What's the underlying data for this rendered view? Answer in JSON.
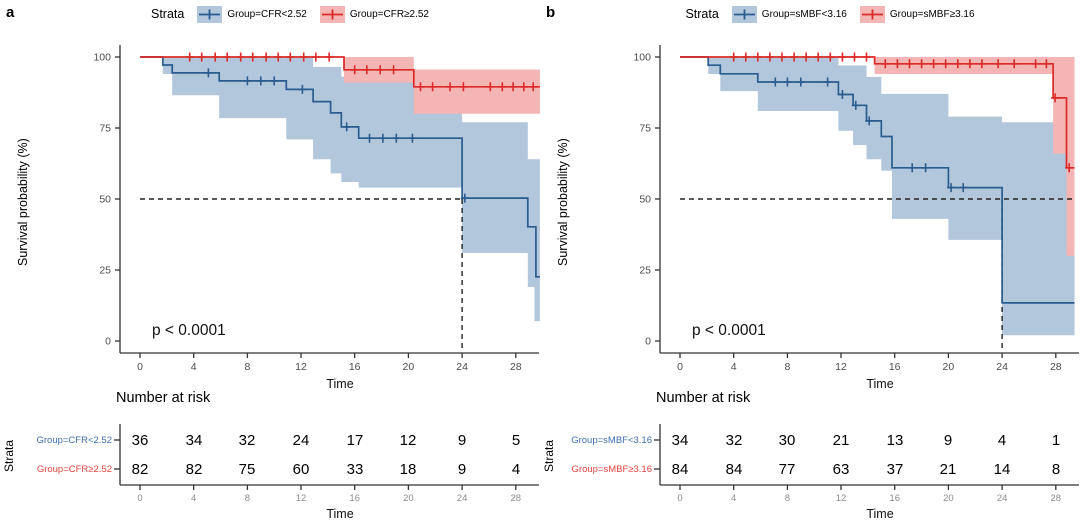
{
  "colors": {
    "blue_line": "#2B5C8F",
    "blue_band": "#B2C6DC",
    "blue_label": "#3E6FB5",
    "red_line": "#DB2A27",
    "red_band": "#F4B5B5",
    "red_label": "#E4463F",
    "axis": "#333333",
    "tick_label": "#4D4D4D",
    "risk_tick_label": "#8C8C8C",
    "guide": "#222222",
    "text": "#111111"
  },
  "chart_data": {
    "type": "line",
    "subtype": "kaplan-meier-step-with-ci",
    "grid": false,
    "panels": [
      {
        "letter": "a",
        "legend_title": "Strata",
        "ylabel": "Survival probability (%)",
        "xlabel": "Time",
        "pvalue": "p < 0.0001",
        "xticks": [
          0,
          4,
          8,
          12,
          16,
          20,
          24,
          28
        ],
        "yticks": [
          0,
          25,
          50,
          75,
          100
        ],
        "xlim": [
          0,
          29.8
        ],
        "ylim": [
          0,
          100
        ],
        "t_end": 29.8,
        "guides": {
          "h_y": 50,
          "h_t_end": 24,
          "v_t": 24
        },
        "series": [
          {
            "name": "Group=CFR<2.52",
            "color": "blue",
            "steps": [
              [
                0,
                100
              ],
              [
                1.7,
                97.2
              ],
              [
                2.4,
                94.4
              ],
              [
                5.9,
                91.6
              ],
              [
                10.9,
                88.6
              ],
              [
                12.9,
                84.3
              ],
              [
                14.2,
                80.3
              ],
              [
                15.0,
                75.4
              ],
              [
                16.3,
                71.4
              ],
              [
                24,
                50.3
              ],
              [
                28.9,
                40.2
              ],
              [
                29.5,
                22.6
              ]
            ],
            "censors": [
              [
                5.1,
                94.4
              ],
              [
                8,
                91.6
              ],
              [
                9,
                91.6
              ],
              [
                10,
                91.6
              ],
              [
                12.1,
                88.6
              ],
              [
                15.4,
                75.4
              ],
              [
                17.1,
                71.4
              ],
              [
                18.1,
                71.4
              ],
              [
                19.1,
                71.4
              ],
              [
                20.3,
                71.4
              ],
              [
                24.2,
                50.3
              ]
            ],
            "band_upper": [
              [
                1.7,
                99.7
              ],
              [
                12.9,
                96.5
              ],
              [
                15.0,
                93
              ],
              [
                16.3,
                91.5
              ],
              [
                24,
                77
              ],
              [
                28.9,
                64
              ]
            ],
            "band_lower": [
              [
                1.7,
                94
              ],
              [
                2.4,
                86.5
              ],
              [
                5.9,
                78.5
              ],
              [
                10.9,
                71
              ],
              [
                12.9,
                64
              ],
              [
                14.2,
                59
              ],
              [
                15.0,
                56
              ],
              [
                16.3,
                54
              ],
              [
                24,
                31
              ],
              [
                28.9,
                19
              ],
              [
                29.4,
                7
              ]
            ]
          },
          {
            "name": "Group=CFR≥2.52",
            "color": "red",
            "steps": [
              [
                0,
                100
              ],
              [
                15.2,
                95.5
              ],
              [
                20.4,
                89.5
              ]
            ],
            "censors": [
              [
                3.7,
                100
              ],
              [
                4.6,
                100
              ],
              [
                5.6,
                100
              ],
              [
                6.5,
                100
              ],
              [
                7.5,
                100
              ],
              [
                8.4,
                100
              ],
              [
                9.4,
                100
              ],
              [
                10.3,
                100
              ],
              [
                11.2,
                100
              ],
              [
                12.2,
                100
              ],
              [
                13.1,
                100
              ],
              [
                14.1,
                100
              ],
              [
                16.0,
                95.5
              ],
              [
                16.9,
                95.5
              ],
              [
                17.9,
                95.5
              ],
              [
                18.9,
                95.5
              ],
              [
                20.9,
                89.5
              ],
              [
                21.8,
                89.5
              ],
              [
                23.1,
                89.5
              ],
              [
                24.1,
                89.5
              ],
              [
                26.1,
                89.5
              ],
              [
                27.0,
                89.5
              ],
              [
                27.8,
                89.5
              ],
              [
                28.6,
                89.5
              ],
              [
                29.3,
                89.5
              ]
            ],
            "band_upper": [
              [
                15.2,
                100
              ],
              [
                20.4,
                95.6
              ]
            ],
            "band_lower": [
              [
                15.2,
                91
              ],
              [
                20.4,
                80
              ]
            ]
          }
        ],
        "risk_table": {
          "title": "Number at risk",
          "strata_axis_label": "Strata",
          "times": [
            0,
            4,
            8,
            12,
            16,
            20,
            24,
            28
          ],
          "rows": [
            {
              "label": "Group=CFR<2.52",
              "color": "blue",
              "counts": [
                36,
                34,
                32,
                24,
                17,
                12,
                9,
                5
              ]
            },
            {
              "label": "Group=CFR≥2.52",
              "color": "red",
              "counts": [
                82,
                82,
                75,
                60,
                33,
                18,
                9,
                4
              ]
            }
          ]
        }
      },
      {
        "letter": "b",
        "legend_title": "Strata",
        "ylabel": "Survival probability (%)",
        "xlabel": "Time",
        "pvalue": "p < 0.0001",
        "xticks": [
          0,
          4,
          8,
          12,
          16,
          20,
          24,
          28
        ],
        "yticks": [
          0,
          25,
          50,
          75,
          100
        ],
        "xlim": [
          0,
          29.4
        ],
        "ylim": [
          0,
          100
        ],
        "t_end": 29.4,
        "guides": {
          "h_y": 50,
          "h_t_end": 29.4,
          "v_t": 24
        },
        "series": [
          {
            "name": "Group=sMBF<3.16",
            "color": "blue",
            "steps": [
              [
                0,
                100
              ],
              [
                2.1,
                97.1
              ],
              [
                3.0,
                94.1
              ],
              [
                5.8,
                91.2
              ],
              [
                11.8,
                86.8
              ],
              [
                12.9,
                83
              ],
              [
                13.9,
                77.5
              ],
              [
                15.0,
                72
              ],
              [
                15.8,
                61
              ],
              [
                20,
                54
              ],
              [
                24,
                13.4
              ]
            ],
            "censors": [
              [
                7.1,
                91.2
              ],
              [
                8.0,
                91.2
              ],
              [
                9.0,
                91.2
              ],
              [
                11.0,
                91.2
              ],
              [
                12.1,
                86.8
              ],
              [
                13.1,
                83
              ],
              [
                14.1,
                77.5
              ],
              [
                17.3,
                61
              ],
              [
                18.3,
                61
              ],
              [
                20.2,
                54
              ],
              [
                21.1,
                54
              ]
            ],
            "band_upper": [
              [
                2.1,
                99.7
              ],
              [
                11.8,
                97
              ],
              [
                13.9,
                93
              ],
              [
                15.0,
                87
              ],
              [
                20,
                79
              ],
              [
                24,
                77
              ]
            ],
            "band_lower": [
              [
                2.1,
                94
              ],
              [
                3.0,
                88
              ],
              [
                5.8,
                81
              ],
              [
                11.8,
                74
              ],
              [
                12.9,
                69
              ],
              [
                13.9,
                64
              ],
              [
                15.0,
                60
              ],
              [
                15.8,
                43
              ],
              [
                20,
                35.6
              ],
              [
                24,
                2
              ]
            ]
          },
          {
            "name": "Group=sMBF≥3.16",
            "color": "red",
            "steps": [
              [
                0,
                100
              ],
              [
                14.5,
                97.6
              ],
              [
                27.8,
                85.6
              ],
              [
                28.8,
                61
              ]
            ],
            "censors": [
              [
                4.0,
                100
              ],
              [
                4.9,
                100
              ],
              [
                5.8,
                100
              ],
              [
                6.7,
                100
              ],
              [
                7.6,
                100
              ],
              [
                8.5,
                100
              ],
              [
                9.4,
                100
              ],
              [
                10.3,
                100
              ],
              [
                11.2,
                100
              ],
              [
                12.1,
                100
              ],
              [
                13.0,
                100
              ],
              [
                13.9,
                100
              ],
              [
                15.3,
                97.6
              ],
              [
                16.2,
                97.6
              ],
              [
                17.1,
                97.6
              ],
              [
                18.0,
                97.6
              ],
              [
                18.9,
                97.6
              ],
              [
                19.8,
                97.6
              ],
              [
                20.7,
                97.6
              ],
              [
                21.6,
                97.6
              ],
              [
                22.5,
                97.6
              ],
              [
                23.7,
                97.6
              ],
              [
                24.9,
                97.6
              ],
              [
                26.5,
                97.6
              ],
              [
                27.3,
                97.6
              ],
              [
                27.95,
                85.6
              ],
              [
                29.0,
                61
              ]
            ],
            "band_upper": [
              [
                14.5,
                100
              ]
            ],
            "band_lower": [
              [
                14.5,
                94
              ],
              [
                27.8,
                66
              ],
              [
                28.8,
                30
              ]
            ]
          }
        ],
        "risk_table": {
          "title": "Number at risk",
          "strata_axis_label": "Strata",
          "times": [
            0,
            4,
            8,
            12,
            16,
            20,
            24,
            28
          ],
          "rows": [
            {
              "label": "Group=sMBF<3.16",
              "color": "blue",
              "counts": [
                34,
                32,
                30,
                21,
                13,
                9,
                4,
                1
              ]
            },
            {
              "label": "Group=sMBF≥3.16",
              "color": "red",
              "counts": [
                84,
                84,
                77,
                63,
                37,
                21,
                14,
                8
              ]
            }
          ]
        }
      }
    ]
  }
}
